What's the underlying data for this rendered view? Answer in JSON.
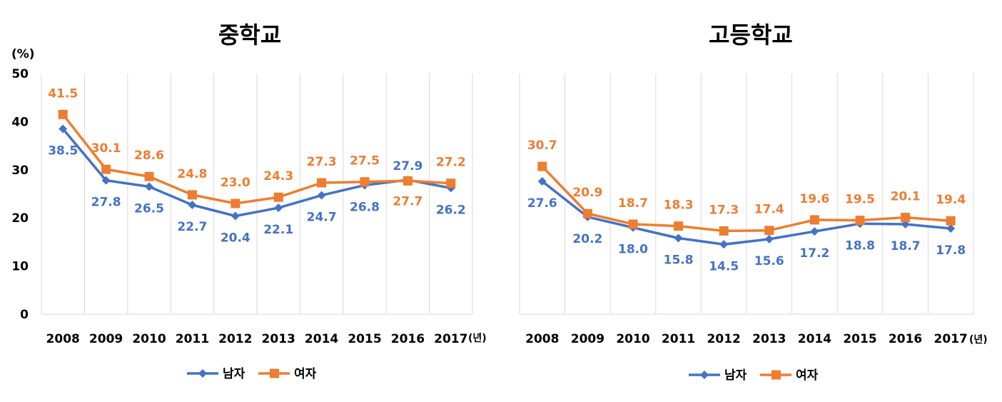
{
  "colors": {
    "male": "#4472C4",
    "female": "#ED7D31",
    "grid": "#d9d9d9"
  },
  "chart_data": [
    {
      "type": "line",
      "title": "중학교",
      "ylabel": "(%)",
      "x_unit": "(년)",
      "ylim": [
        0,
        50
      ],
      "yticks": [
        "0",
        "10",
        "20",
        "30",
        "40",
        "50"
      ],
      "categories": [
        "2008",
        "2009",
        "2010",
        "2011",
        "2012",
        "2013",
        "2014",
        "2015",
        "2016",
        "2017"
      ],
      "series": [
        {
          "name": "남자",
          "values": [
            38.5,
            27.8,
            26.5,
            22.7,
            20.4,
            22.1,
            24.7,
            26.8,
            27.9,
            26.2
          ]
        },
        {
          "name": "여자",
          "values": [
            41.5,
            30.1,
            28.6,
            24.8,
            23.0,
            24.3,
            27.3,
            27.5,
            27.7,
            27.2
          ]
        }
      ],
      "legend": "bottom"
    },
    {
      "type": "line",
      "title": "고등학교",
      "x_unit": "(년)",
      "ylim": [
        0,
        50
      ],
      "categories": [
        "2008",
        "2009",
        "2010",
        "2011",
        "2012",
        "2013",
        "2014",
        "2015",
        "2016",
        "2017"
      ],
      "series": [
        {
          "name": "남자",
          "values": [
            27.6,
            20.2,
            18.0,
            15.8,
            14.5,
            15.6,
            17.2,
            18.8,
            18.7,
            17.8
          ]
        },
        {
          "name": "여자",
          "values": [
            30.7,
            20.9,
            18.7,
            18.3,
            17.3,
            17.4,
            19.6,
            19.5,
            20.1,
            19.4
          ]
        }
      ],
      "legend": "bottom"
    }
  ]
}
